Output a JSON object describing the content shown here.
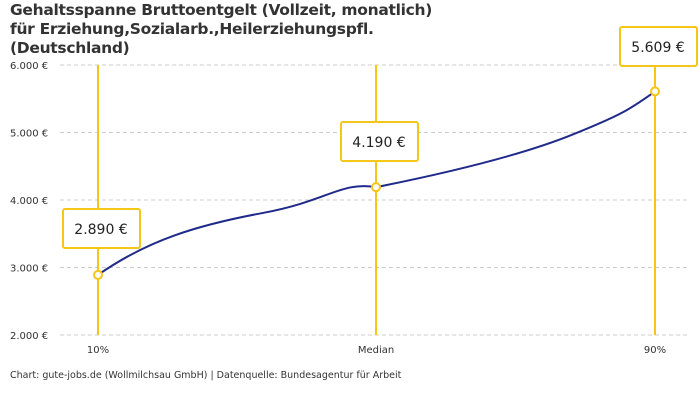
{
  "chart_data": {
    "type": "line",
    "title": "Gehaltsspanne Bruttoentgelt (Vollzeit, monatlich) für Erziehung,Sozialarb.,Heilerziehungspfl. (Deutschland)",
    "categories": [
      "10%",
      "Median",
      "90%"
    ],
    "values": [
      2890,
      4190,
      5609
    ],
    "data_labels": [
      "2.890 €",
      "4.190 €",
      "5.609 €"
    ],
    "yticks": [
      2000,
      3000,
      4000,
      5000,
      6000
    ],
    "ytick_labels": [
      "2.000 €",
      "3.000 €",
      "4.000 €",
      "5.000 €",
      "6.000 €"
    ],
    "ylim": [
      2000,
      6000
    ],
    "grid": true,
    "colors": {
      "line": "#1f2a8a",
      "marker": "#f5c518",
      "grid": "#cccccc"
    }
  },
  "footer": "Chart: gute-jobs.de (Wollmilchsau GmbH) | Datenquelle: Bundesagentur für Arbeit"
}
